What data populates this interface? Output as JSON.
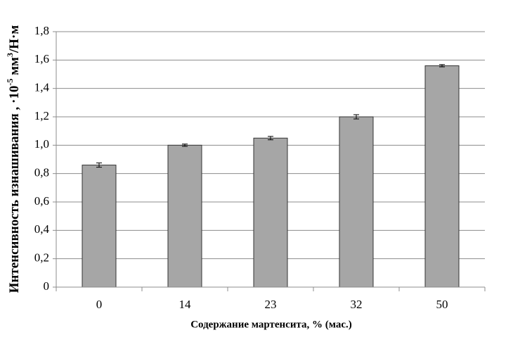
{
  "chart_data": {
    "type": "bar",
    "ylabel": [
      "Интенсивность изнашивания , ·10",
      "-5",
      " мм",
      "3",
      "/Н·м"
    ],
    "xlabel": "Содержание мартенсита, % (мас.)",
    "categories": [
      "0",
      "14",
      "23",
      "32",
      "50"
    ],
    "values": [
      0.86,
      1.0,
      1.05,
      1.2,
      1.56
    ],
    "errors": [
      0.015,
      0.008,
      0.012,
      0.015,
      0.008
    ],
    "color": "#a6a6a6",
    "ylim": [
      0,
      1.8
    ],
    "yticks": [
      0,
      {
        "value": 0.2,
        "label": "0,2"
      },
      {
        "value": 0.4,
        "label": "0,4"
      },
      {
        "value": 0.6,
        "label": "0,6"
      },
      {
        "value": 0.8,
        "label": "0,8"
      },
      {
        "value": 1,
        "label": "1,0"
      },
      {
        "value": 1.2,
        "label": "1,2"
      },
      {
        "value": 1.4,
        "label": "1,4"
      },
      {
        "value": 1.6,
        "label": "1,6"
      },
      {
        "value": 1.8,
        "label": "1,8"
      }
    ],
    "grid": true
  }
}
